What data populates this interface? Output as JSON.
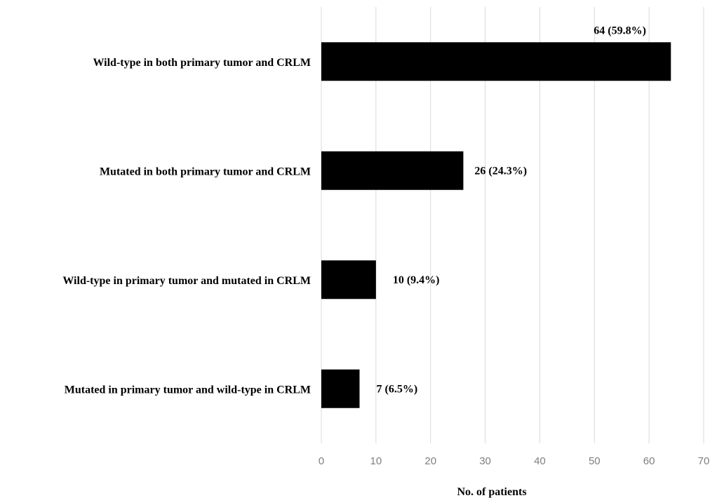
{
  "chart_data": {
    "type": "bar",
    "orientation": "horizontal",
    "categories": [
      "Wild-type in both primary tumor and CRLM",
      "Mutated in both primary tumor and CRLM",
      "Wild-type in primary tumor and mutated in CRLM",
      "Mutated in primary tumor and wild-type in CRLM"
    ],
    "values": [
      64,
      26,
      10,
      7
    ],
    "data_labels": [
      "64 (59.8%)",
      "26 (24.3%)",
      "10 (9.4%)",
      "7 (6.5%)"
    ],
    "xlabel": "No. of patients",
    "ylabel": "",
    "xlim": [
      0,
      70
    ],
    "xticks": [
      0,
      10,
      20,
      30,
      40,
      50,
      60,
      70
    ],
    "grid": true,
    "legend": "none",
    "bar_color": "#000000",
    "grid_color": "#d9d9d9"
  }
}
